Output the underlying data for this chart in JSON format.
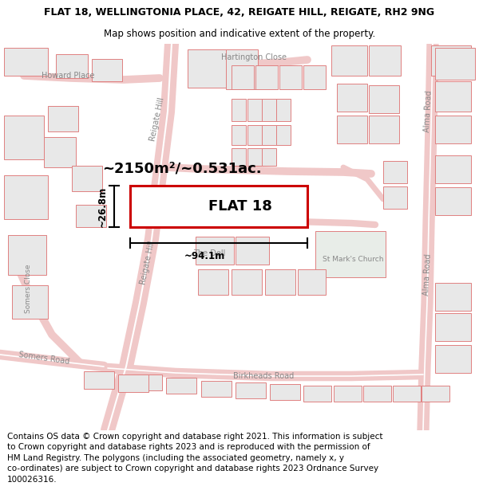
{
  "title_line1": "FLAT 18, WELLINGTONIA PLACE, 42, REIGATE HILL, REIGATE, RH2 9NG",
  "title_line2": "Map shows position and indicative extent of the property.",
  "title_fontsize": 9.0,
  "subtitle_fontsize": 8.5,
  "label_flat": "FLAT 18",
  "label_flat_fontsize": 13,
  "area_label": "~2150m²/~0.531ac.",
  "area_fontsize": 13,
  "width_label": "~94.1m",
  "height_label": "~26.8m",
  "meas_fontsize": 8.5,
  "footer_text": "Contains OS data © Crown copyright and database right 2021. This information is subject\nto Crown copyright and database rights 2023 and is reproduced with the permission of\nHM Land Registry. The polygons (including the associated geometry, namely x, y\nco-ordinates) are subject to Crown copyright and database rights 2023 Ordnance Survey\n100026316.",
  "footer_fontsize": 7.5,
  "property_rect_color": "#cc0000",
  "road_color": "#f5a0a0",
  "road_color2": "#f0c8c8",
  "building_outline": "#e08080",
  "building_fill": "#e8e8e8",
  "church_fill": "#e8ede8",
  "map_bg": "#faf5f5",
  "dim_line_color": "#000000"
}
